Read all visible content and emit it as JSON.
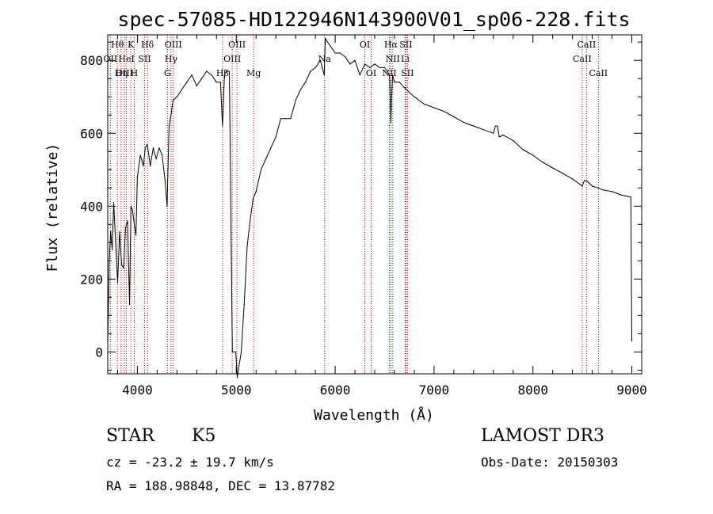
{
  "chart_data": {
    "type": "line",
    "title": "spec-57085-HD122946N143900V01_sp06-228.fits",
    "xlabel": "Wavelength (Å)",
    "ylabel": "Flux (relative)",
    "xlim": [
      3700,
      9100
    ],
    "ylim": [
      -60,
      870
    ],
    "xticks": [
      4000,
      5000,
      6000,
      7000,
      8000,
      9000
    ],
    "yticks": [
      0,
      200,
      400,
      600,
      800
    ],
    "grid": false,
    "line_color": "#000000",
    "marker_color": "#cc0000",
    "series": [
      {
        "x": [
          3700,
          3715,
          3730,
          3745,
          3760,
          3780,
          3800,
          3820,
          3840,
          3860,
          3880,
          3900,
          3920,
          3935,
          3950,
          3968,
          3985,
          4000,
          4030,
          4060,
          4080,
          4100,
          4130,
          4160,
          4190,
          4220,
          4250,
          4280,
          4300,
          4320,
          4340,
          4360,
          4400,
          4450,
          4500,
          4550,
          4600,
          4650,
          4700,
          4750,
          4800,
          4840,
          4861,
          4880,
          4900,
          4930,
          4960,
          4990,
          4995,
          5010,
          5050,
          5080,
          5110,
          5140,
          5170,
          5200,
          5250,
          5300,
          5350,
          5400,
          5450,
          5500,
          5550,
          5600,
          5650,
          5700,
          5750,
          5800,
          5850,
          5890,
          5900,
          5950,
          6000,
          6050,
          6100,
          6150,
          6200,
          6250,
          6300,
          6350,
          6400,
          6450,
          6500,
          6550,
          6563,
          6580,
          6600,
          6650,
          6700,
          6800,
          6900,
          7000,
          7100,
          7200,
          7300,
          7400,
          7500,
          7600,
          7620,
          7640,
          7660,
          7700,
          7800,
          7900,
          8000,
          8100,
          8200,
          8300,
          8400,
          8498,
          8520,
          8542,
          8600,
          8662,
          8700,
          8800,
          8900,
          8990,
          9000
        ],
        "values": [
          20,
          250,
          330,
          280,
          410,
          300,
          190,
          330,
          240,
          230,
          340,
          360,
          130,
          400,
          390,
          350,
          320,
          480,
          540,
          510,
          560,
          570,
          510,
          560,
          530,
          560,
          540,
          470,
          400,
          620,
          650,
          690,
          700,
          720,
          740,
          760,
          730,
          750,
          770,
          760,
          740,
          740,
          620,
          760,
          770,
          770,
          0,
          0,
          0,
          -70,
          0,
          130,
          290,
          360,
          420,
          440,
          500,
          530,
          560,
          590,
          640,
          640,
          640,
          690,
          720,
          740,
          770,
          780,
          800,
          760,
          860,
          840,
          820,
          820,
          810,
          790,
          800,
          760,
          790,
          780,
          790,
          780,
          780,
          760,
          630,
          760,
          740,
          740,
          725,
          700,
          680,
          670,
          660,
          645,
          630,
          620,
          610,
          600,
          620,
          620,
          590,
          595,
          580,
          555,
          540,
          520,
          505,
          490,
          475,
          455,
          470,
          470,
          455,
          450,
          445,
          440,
          430,
          425,
          30
        ]
      }
    ],
    "annotations": [
      {
        "label": "Hθ",
        "x": 3798,
        "row": 0
      },
      {
        "label": "K",
        "x": 3934,
        "row": 0
      },
      {
        "label": "Hδ",
        "x": 4102,
        "row": 0
      },
      {
        "label": "OIII",
        "x": 4363,
        "row": 0
      },
      {
        "label": "OIII",
        "x": 5007,
        "row": 0
      },
      {
        "label": "OI",
        "x": 6300,
        "row": 0
      },
      {
        "label": "Hα",
        "x": 6563,
        "row": 0
      },
      {
        "label": "SII",
        "x": 6716,
        "row": 0
      },
      {
        "label": "CaII",
        "x": 8542,
        "row": 0
      },
      {
        "label": "OII",
        "x": 3727,
        "row": 1
      },
      {
        "label": "HeI",
        "x": 3889,
        "row": 1
      },
      {
        "label": "SII",
        "x": 4072,
        "row": 1
      },
      {
        "label": "Hγ",
        "x": 4340,
        "row": 1
      },
      {
        "label": "OIII",
        "x": 4959,
        "row": 1
      },
      {
        "label": "Na",
        "x": 5893,
        "row": 1
      },
      {
        "label": "NII",
        "x": 6583,
        "row": 1
      },
      {
        "label": "Li",
        "x": 6708,
        "row": 1
      },
      {
        "label": "CaII",
        "x": 8498,
        "row": 1
      },
      {
        "label": "OIII",
        "x": 3869,
        "row": 2
      },
      {
        "label": "Hη",
        "x": 3835,
        "row": 2
      },
      {
        "label": "H",
        "x": 3968,
        "row": 2
      },
      {
        "label": "G",
        "x": 4304,
        "row": 2
      },
      {
        "label": "Hβ",
        "x": 4861,
        "row": 2
      },
      {
        "label": "Mg",
        "x": 5175,
        "row": 2
      },
      {
        "label": "OI",
        "x": 6364,
        "row": 2
      },
      {
        "label": "NII",
        "x": 6548,
        "row": 2
      },
      {
        "label": "SII",
        "x": 6731,
        "row": 2
      },
      {
        "label": "CaII",
        "x": 8662,
        "row": 2
      }
    ]
  },
  "footer": {
    "object": "STAR",
    "subclass": "K5",
    "survey": "LAMOST DR3",
    "redshift": "cz = -23.2 ± 19.7 km/s",
    "obs_date": "Obs-Date: 20150303",
    "coords": "RA = 188.98848, DEC =  13.87782"
  }
}
